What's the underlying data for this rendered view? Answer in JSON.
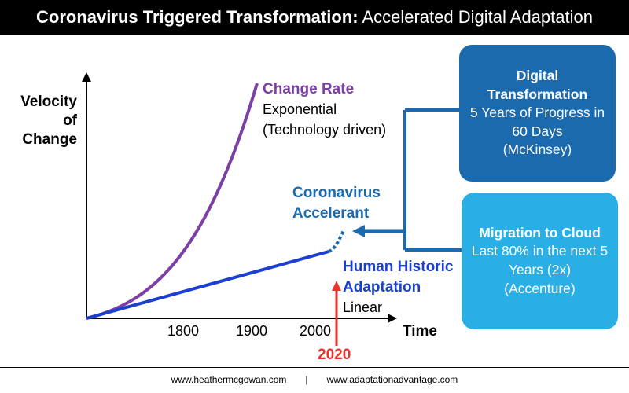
{
  "header": {
    "title_bold": "Coronavirus Triggered Transformation:",
    "title_rest": " Accelerated Digital Adaptation"
  },
  "axes": {
    "y_label": "Velocity of Change",
    "x_label": "Time",
    "x_ticks": [
      "1800",
      "1900",
      "2000"
    ],
    "marker_year": "2020"
  },
  "curves": {
    "change_rate": {
      "title": "Change Rate",
      "line1": "Exponential",
      "line2": "(Technology driven)"
    },
    "accelerant": {
      "title": "Coronavirus",
      "title2": "Accelerant"
    },
    "historic": {
      "title": "Human Historic",
      "title2": "Adaptation",
      "sub": "Linear"
    }
  },
  "boxes": {
    "digital": {
      "title": "Digital Transformation",
      "body": "5 Years of Progress in 60 Days",
      "source": "(McKinsey)"
    },
    "cloud": {
      "title": "Migration to Cloud",
      "body": "Last 80% in the next 5 Years (2x)",
      "source": "(Accenture)"
    }
  },
  "footer": {
    "link1": "www.heathermcgowan.com",
    "separator": "|",
    "link2": "www.adaptationadvantage.com"
  },
  "colors": {
    "exponential": "#7b3fa6",
    "linear": "#1b3fcf",
    "connector": "#1a6aad",
    "box_dark": "#1a6aad",
    "box_light": "#2aaee6",
    "year_arrow": "#e8322b"
  }
}
